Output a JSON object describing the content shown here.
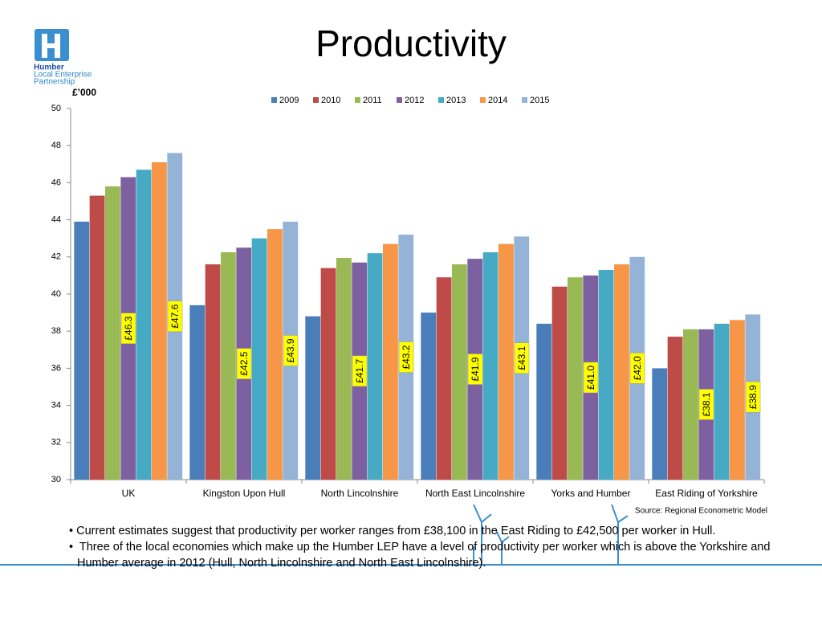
{
  "logo": [
    "Humber",
    "Local Enterprise",
    "Partnership"
  ],
  "source": "Source: Regional Econometric Model",
  "bullets": [
    "Current estimates suggest that productivity per worker ranges from £38,100 in the East Riding to £42,500 per worker in Hull.",
    "Three of the local economies which make up the Humber LEP have a level of productivity per worker which is above the Yorkshire and Humber average in 2012 (Hull, North Lincolnshire and North East Lincolnshire)."
  ],
  "chart_data": {
    "type": "bar",
    "title": "Productivity",
    "y_label": "£’000",
    "categories": [
      "UK",
      "Kingston Upon Hull",
      "North Lincolnshire",
      "North East Lincolnshire",
      "Yorks and Humber",
      "East Riding of Yorkshire"
    ],
    "series": [
      {
        "name": "2009",
        "color": "#4a7ebb",
        "values": [
          43.9,
          39.4,
          38.8,
          39.0,
          38.4,
          36.0
        ]
      },
      {
        "name": "2010",
        "color": "#be4b48",
        "values": [
          45.3,
          41.6,
          41.4,
          40.9,
          40.4,
          37.7
        ]
      },
      {
        "name": "2011",
        "color": "#98b954",
        "values": [
          45.8,
          42.25,
          41.95,
          41.6,
          40.9,
          38.1
        ]
      },
      {
        "name": "2012",
        "color": "#7d60a0",
        "values": [
          46.3,
          42.5,
          41.7,
          41.9,
          41.0,
          38.1
        ],
        "value_labels": [
          "£46.3",
          "£42.5",
          "£41.7",
          "£41.9",
          "£41.0",
          "£38.1"
        ]
      },
      {
        "name": "2013",
        "color": "#46aac5",
        "values": [
          46.7,
          43.0,
          42.2,
          42.25,
          41.3,
          38.4
        ]
      },
      {
        "name": "2014",
        "color": "#f79646",
        "values": [
          47.1,
          43.5,
          42.7,
          42.7,
          41.6,
          38.6
        ]
      },
      {
        "name": "2015",
        "color": "#94b3d7",
        "values": [
          47.6,
          43.9,
          43.2,
          43.1,
          42.0,
          38.9
        ],
        "value_labels": [
          "£47.6",
          "£43.9",
          "£43.2",
          "£43.1",
          "£42.0",
          "£38.9"
        ]
      }
    ],
    "ylim": [
      30,
      50
    ],
    "yticks": [
      30,
      32,
      34,
      36,
      38,
      40,
      42,
      44,
      46,
      48,
      50
    ],
    "grid": false,
    "legend": "top"
  }
}
